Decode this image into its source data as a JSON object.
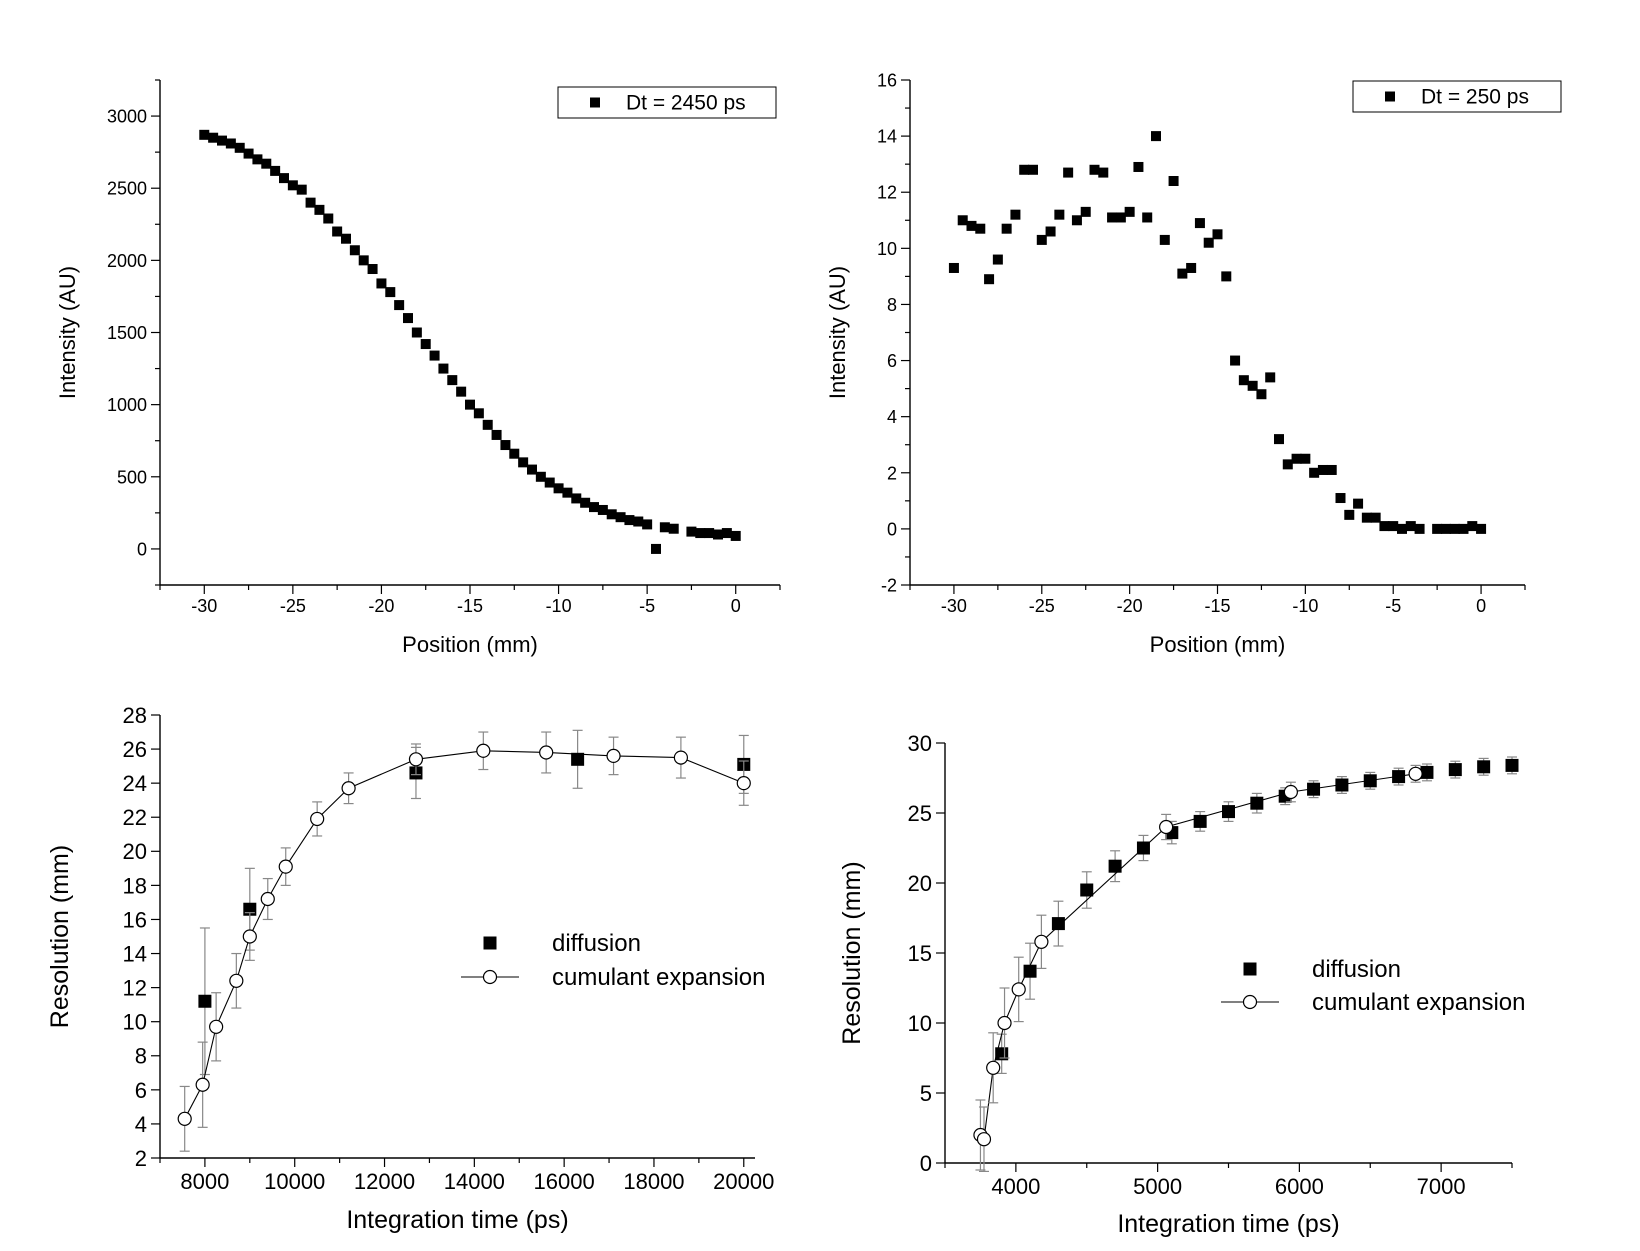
{
  "chart_data": [
    {
      "type": "scatter",
      "xlabel": "Position (mm)",
      "ylabel": "Intensity (AU)",
      "xlim": [
        -32.5,
        2.5
      ],
      "ylim": [
        -250,
        3250
      ],
      "xticks": [
        -30,
        -25,
        -20,
        -15,
        -10,
        -5,
        0
      ],
      "yticks": [
        0,
        500,
        1000,
        1500,
        2000,
        2500,
        3000
      ],
      "series": [
        {
          "name": "Dt = 2450 ps",
          "marker": "filled-square",
          "x": [
            -30,
            -29.5,
            -29,
            -28.5,
            -28,
            -27.5,
            -27,
            -26.5,
            -26,
            -25.5,
            -25,
            -24.5,
            -24,
            -23.5,
            -23,
            -22.5,
            -22,
            -21.5,
            -21,
            -20.5,
            -20,
            -19.5,
            -19,
            -18.5,
            -18,
            -17.5,
            -17,
            -16.5,
            -16,
            -15.5,
            -15,
            -14.5,
            -14,
            -13.5,
            -13,
            -12.5,
            -12,
            -11.5,
            -11,
            -10.5,
            -10,
            -9.5,
            -9,
            -8.5,
            -8,
            -7.5,
            -7,
            -6.5,
            -6,
            -5.5,
            -5,
            -4.5,
            -4,
            -3.5,
            -2.5,
            -2,
            -1.5,
            -1,
            -0.5,
            0
          ],
          "y": [
            2870,
            2850,
            2830,
            2810,
            2780,
            2740,
            2700,
            2670,
            2620,
            2570,
            2520,
            2490,
            2400,
            2350,
            2290,
            2200,
            2150,
            2070,
            2000,
            1940,
            1840,
            1780,
            1690,
            1600,
            1500,
            1420,
            1340,
            1250,
            1170,
            1090,
            1000,
            940,
            860,
            790,
            720,
            660,
            600,
            550,
            500,
            460,
            420,
            390,
            350,
            320,
            290,
            270,
            240,
            220,
            200,
            190,
            170,
            0,
            150,
            140,
            120,
            110,
            110,
            100,
            110,
            90
          ]
        }
      ]
    },
    {
      "type": "scatter",
      "xlabel": "Position (mm)",
      "ylabel": "Intensity (AU)",
      "xlim": [
        -32.5,
        2.5
      ],
      "ylim": [
        -2,
        16
      ],
      "xticks": [
        -30,
        -25,
        -20,
        -15,
        -10,
        -5,
        0
      ],
      "yticks": [
        -2,
        0,
        2,
        4,
        6,
        8,
        10,
        12,
        14,
        16
      ],
      "series": [
        {
          "name": "Dt = 250 ps",
          "marker": "filled-square",
          "x": [
            -30,
            -29.5,
            -29,
            -28.5,
            -28,
            -27.5,
            -27,
            -26.5,
            -26,
            -25.5,
            -25,
            -24.5,
            -24,
            -23.5,
            -23,
            -22.5,
            -22,
            -21.5,
            -21,
            -20.5,
            -20,
            -19.5,
            -19,
            -18.5,
            -18,
            -17.5,
            -17,
            -16.5,
            -16,
            -15.5,
            -15,
            -14.5,
            -14,
            -13.5,
            -13,
            -12.5,
            -12,
            -11.5,
            -11,
            -10.5,
            -10,
            -9.5,
            -9,
            -8.5,
            -8,
            -7.5,
            -7,
            -6.5,
            -6,
            -5.5,
            -5,
            -4.5,
            -4,
            -3.5,
            -2.5,
            -2,
            -1.5,
            -1,
            -0.5,
            0
          ],
          "y": [
            9.3,
            11.0,
            10.8,
            10.7,
            8.9,
            9.6,
            10.7,
            11.2,
            12.8,
            12.8,
            10.3,
            10.6,
            11.2,
            12.7,
            11.0,
            11.3,
            12.8,
            12.7,
            11.1,
            11.1,
            11.3,
            12.9,
            11.1,
            14.0,
            10.3,
            12.4,
            9.1,
            9.3,
            10.9,
            10.2,
            10.5,
            9.0,
            6.0,
            5.3,
            5.1,
            4.8,
            5.4,
            3.2,
            2.3,
            2.5,
            2.5,
            2.0,
            2.1,
            2.1,
            1.1,
            0.5,
            0.9,
            0.4,
            0.4,
            0.1,
            0.1,
            0.0,
            0.1,
            0.0,
            0.0,
            0.0,
            0.0,
            0.0,
            0.1,
            0.0
          ]
        }
      ]
    },
    {
      "type": "scatter",
      "xlabel": "Integration time (ps)",
      "ylabel": "Resolution (mm)",
      "xlim": [
        7000,
        20250
      ],
      "ylim": [
        2,
        28
      ],
      "xticks": [
        8000,
        10000,
        12000,
        14000,
        16000,
        18000,
        20000
      ],
      "yticks": [
        2,
        4,
        6,
        8,
        10,
        12,
        14,
        16,
        18,
        20,
        22,
        24,
        26,
        28
      ],
      "legend_position": "center-right",
      "series": [
        {
          "name": "diffusion",
          "marker": "filled-square",
          "x": [
            8000,
            9000,
            12700,
            16300,
            20000
          ],
          "y": [
            11.2,
            16.6,
            24.6,
            25.4,
            25.1
          ],
          "err": [
            4.3,
            2.4,
            1.5,
            1.7,
            1.7
          ]
        },
        {
          "name": "cumulant expansion",
          "marker": "open-circle",
          "line": true,
          "x": [
            7550,
            7950,
            8250,
            8700,
            9000,
            9400,
            9800,
            10500,
            11200,
            12700,
            14200,
            15600,
            17100,
            18600,
            20000
          ],
          "y": [
            4.3,
            6.3,
            9.7,
            12.4,
            15.0,
            17.2,
            19.1,
            21.9,
            23.7,
            25.4,
            25.9,
            25.8,
            25.6,
            25.5,
            24.0
          ],
          "err": [
            1.9,
            2.5,
            2.0,
            1.6,
            1.4,
            1.2,
            1.1,
            1.0,
            0.9,
            0.9,
            1.1,
            1.2,
            1.1,
            1.2,
            1.3
          ]
        }
      ]
    },
    {
      "type": "scatter",
      "xlabel": "Integration time (ps)",
      "ylabel": "Resolution (mm)",
      "xlim": [
        3500,
        7500
      ],
      "ylim": [
        0,
        30
      ],
      "xticks": [
        4000,
        5000,
        6000,
        7000
      ],
      "yticks": [
        0,
        5,
        10,
        15,
        20,
        25,
        30
      ],
      "legend_position": "center-right",
      "series": [
        {
          "name": "diffusion",
          "marker": "filled-square",
          "x": [
            3900,
            4100,
            4300,
            4500,
            4700,
            4900,
            5100,
            5300,
            5500,
            5700,
            5900,
            6100,
            6300,
            6500,
            6700,
            6900,
            7100,
            7300,
            7500
          ],
          "y": [
            7.8,
            13.7,
            17.1,
            19.5,
            21.2,
            22.5,
            23.6,
            24.4,
            25.1,
            25.7,
            26.2,
            26.7,
            27.0,
            27.3,
            27.6,
            27.9,
            28.1,
            28.3,
            28.4
          ],
          "err": [
            1.4,
            2.0,
            1.6,
            1.3,
            1.1,
            0.9,
            0.8,
            0.7,
            0.7,
            0.7,
            0.6,
            0.6,
            0.6,
            0.6,
            0.6,
            0.6,
            0.6,
            0.6,
            0.6
          ]
        },
        {
          "name": "cumulant expansion",
          "marker": "open-circle",
          "line": true,
          "x": [
            3750,
            3775,
            3840,
            3920,
            4020,
            4180,
            5060,
            5940,
            6820
          ],
          "y": [
            2.0,
            1.7,
            6.8,
            10.0,
            12.4,
            15.8,
            24.0,
            26.5,
            27.8
          ],
          "err": [
            2.5,
            2.3,
            2.5,
            2.5,
            2.3,
            1.9,
            0.9,
            0.7,
            0.6
          ]
        }
      ]
    }
  ]
}
